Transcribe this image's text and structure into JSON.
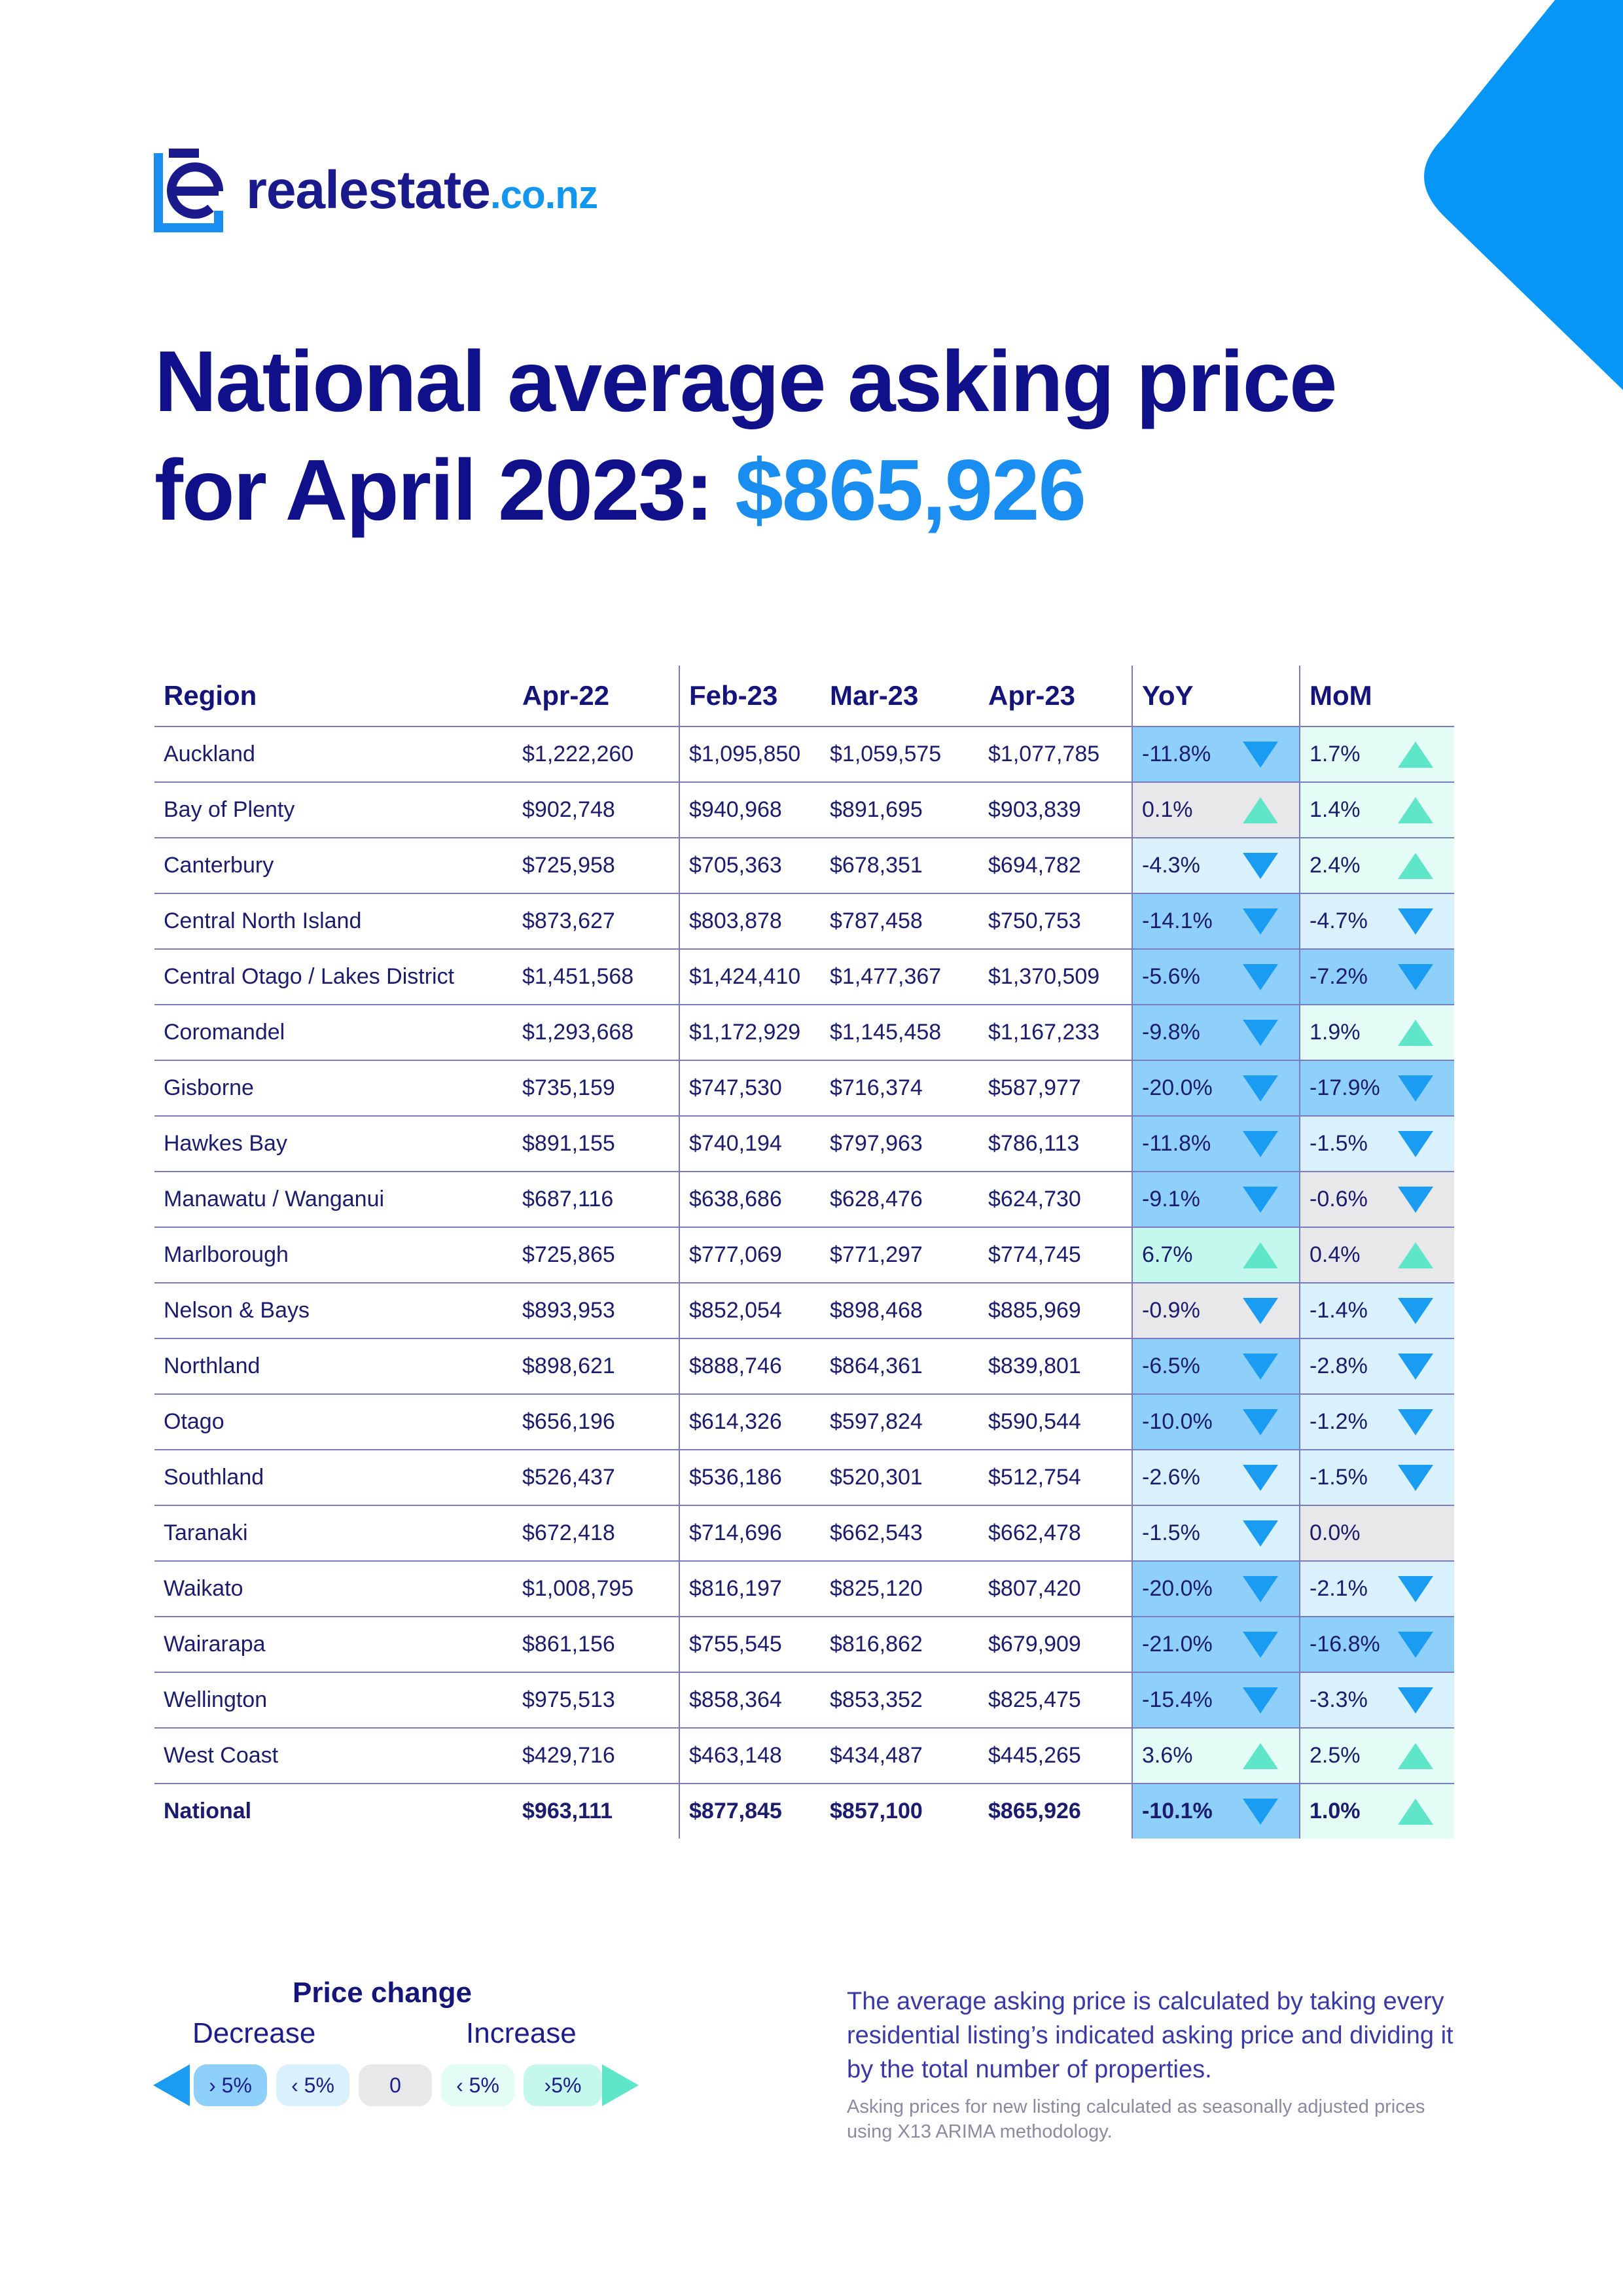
{
  "brand": {
    "name": "realestate",
    "tld": ".co.nz"
  },
  "headline": {
    "line1": "National average asking price",
    "line2": "for April 2023: ",
    "price": "$865,926"
  },
  "table": {
    "headers": [
      "Region",
      "Apr-22",
      "Feb-23",
      "Mar-23",
      "Apr-23",
      "YoY",
      "MoM"
    ],
    "rows": [
      {
        "region": "Auckland",
        "apr22": "$1,222,260",
        "feb23": "$1,095,850",
        "mar23": "$1,059,575",
        "apr23": "$1,077,785",
        "yoy": "-11.8%",
        "yoy_dir": "down",
        "yoy_band": "sdn",
        "mom": "1.7%",
        "mom_dir": "up",
        "mom_band": "up"
      },
      {
        "region": "Bay of Plenty",
        "apr22": "$902,748",
        "feb23": "$940,968",
        "mar23": "$891,695",
        "apr23": "$903,839",
        "yoy": "0.1%",
        "yoy_dir": "up",
        "yoy_band": "neu",
        "mom": "1.4%",
        "mom_dir": "up",
        "mom_band": "up"
      },
      {
        "region": "Canterbury",
        "apr22": "$725,958",
        "feb23": "$705,363",
        "mar23": "$678,351",
        "apr23": "$694,782",
        "yoy": "-4.3%",
        "yoy_dir": "down",
        "yoy_band": "dn",
        "mom": "2.4%",
        "mom_dir": "up",
        "mom_band": "up"
      },
      {
        "region": "Central North Island",
        "apr22": "$873,627",
        "feb23": "$803,878",
        "mar23": "$787,458",
        "apr23": "$750,753",
        "yoy": "-14.1%",
        "yoy_dir": "down",
        "yoy_band": "sdn",
        "mom": "-4.7%",
        "mom_dir": "down",
        "mom_band": "dn"
      },
      {
        "region": "Central Otago / Lakes District",
        "apr22": "$1,451,568",
        "feb23": "$1,424,410",
        "mar23": "$1,477,367",
        "apr23": "$1,370,509",
        "yoy": "-5.6%",
        "yoy_dir": "down",
        "yoy_band": "sdn",
        "mom": "-7.2%",
        "mom_dir": "down",
        "mom_band": "sdn"
      },
      {
        "region": "Coromandel",
        "apr22": "$1,293,668",
        "feb23": "$1,172,929",
        "mar23": "$1,145,458",
        "apr23": "$1,167,233",
        "yoy": "-9.8%",
        "yoy_dir": "down",
        "yoy_band": "sdn",
        "mom": "1.9%",
        "mom_dir": "up",
        "mom_band": "up"
      },
      {
        "region": "Gisborne",
        "apr22": "$735,159",
        "feb23": "$747,530",
        "mar23": "$716,374",
        "apr23": "$587,977",
        "yoy": "-20.0%",
        "yoy_dir": "down",
        "yoy_band": "sdn",
        "mom": "-17.9%",
        "mom_dir": "down",
        "mom_band": "sdn"
      },
      {
        "region": "Hawkes Bay",
        "apr22": "$891,155",
        "feb23": "$740,194",
        "mar23": "$797,963",
        "apr23": "$786,113",
        "yoy": "-11.8%",
        "yoy_dir": "down",
        "yoy_band": "sdn",
        "mom": "-1.5%",
        "mom_dir": "down",
        "mom_band": "dn"
      },
      {
        "region": "Manawatu / Wanganui",
        "apr22": "$687,116",
        "feb23": "$638,686",
        "mar23": "$628,476",
        "apr23": "$624,730",
        "yoy": "-9.1%",
        "yoy_dir": "down",
        "yoy_band": "sdn",
        "mom": "-0.6%",
        "mom_dir": "down",
        "mom_band": "neu"
      },
      {
        "region": "Marlborough",
        "apr22": "$725,865",
        "feb23": "$777,069",
        "mar23": "$771,297",
        "apr23": "$774,745",
        "yoy": "6.7%",
        "yoy_dir": "up",
        "yoy_band": "sup",
        "mom": "0.4%",
        "mom_dir": "up",
        "mom_band": "neu"
      },
      {
        "region": "Nelson & Bays",
        "apr22": "$893,953",
        "feb23": "$852,054",
        "mar23": "$898,468",
        "apr23": "$885,969",
        "yoy": "-0.9%",
        "yoy_dir": "down",
        "yoy_band": "neu",
        "mom": "-1.4%",
        "mom_dir": "down",
        "mom_band": "dn"
      },
      {
        "region": "Northland",
        "apr22": "$898,621",
        "feb23": "$888,746",
        "mar23": "$864,361",
        "apr23": "$839,801",
        "yoy": "-6.5%",
        "yoy_dir": "down",
        "yoy_band": "sdn",
        "mom": "-2.8%",
        "mom_dir": "down",
        "mom_band": "dn"
      },
      {
        "region": "Otago",
        "apr22": "$656,196",
        "feb23": "$614,326",
        "mar23": "$597,824",
        "apr23": "$590,544",
        "yoy": "-10.0%",
        "yoy_dir": "down",
        "yoy_band": "sdn",
        "mom": "-1.2%",
        "mom_dir": "down",
        "mom_band": "dn"
      },
      {
        "region": "Southland",
        "apr22": "$526,437",
        "feb23": "$536,186",
        "mar23": "$520,301",
        "apr23": "$512,754",
        "yoy": "-2.6%",
        "yoy_dir": "down",
        "yoy_band": "dn",
        "mom": "-1.5%",
        "mom_dir": "down",
        "mom_band": "dn"
      },
      {
        "region": "Taranaki",
        "apr22": "$672,418",
        "feb23": "$714,696",
        "mar23": "$662,543",
        "apr23": "$662,478",
        "yoy": "-1.5%",
        "yoy_dir": "down",
        "yoy_band": "dn",
        "mom": "0.0%",
        "mom_dir": "none",
        "mom_band": "neu"
      },
      {
        "region": "Waikato",
        "apr22": "$1,008,795",
        "feb23": "$816,197",
        "mar23": "$825,120",
        "apr23": "$807,420",
        "yoy": "-20.0%",
        "yoy_dir": "down",
        "yoy_band": "sdn",
        "mom": "-2.1%",
        "mom_dir": "down",
        "mom_band": "dn"
      },
      {
        "region": "Wairarapa",
        "apr22": "$861,156",
        "feb23": "$755,545",
        "mar23": "$816,862",
        "apr23": "$679,909",
        "yoy": "-21.0%",
        "yoy_dir": "down",
        "yoy_band": "sdn",
        "mom": "-16.8%",
        "mom_dir": "down",
        "mom_band": "sdn"
      },
      {
        "region": "Wellington",
        "apr22": "$975,513",
        "feb23": "$858,364",
        "mar23": "$853,352",
        "apr23": "$825,475",
        "yoy": "-15.4%",
        "yoy_dir": "down",
        "yoy_band": "sdn",
        "mom": "-3.3%",
        "mom_dir": "down",
        "mom_band": "dn"
      },
      {
        "region": "West Coast",
        "apr22": "$429,716",
        "feb23": "$463,148",
        "mar23": "$434,487",
        "apr23": "$445,265",
        "yoy": "3.6%",
        "yoy_dir": "up",
        "yoy_band": "up",
        "mom": "2.5%",
        "mom_dir": "up",
        "mom_band": "up"
      },
      {
        "region": "National",
        "apr22": "$963,111",
        "feb23": "$877,845",
        "mar23": "$857,100",
        "apr23": "$865,926",
        "yoy": "-10.1%",
        "yoy_dir": "down",
        "yoy_band": "sdn",
        "mom": "1.0%",
        "mom_dir": "up",
        "mom_band": "up",
        "total": true
      }
    ]
  },
  "legend": {
    "title": "Price change",
    "decrease": "Decrease",
    "increase": "Increase",
    "pills": [
      "› 5%",
      "‹ 5%",
      "0",
      "‹ 5%",
      "›5%"
    ]
  },
  "note": "The average asking price is calculated by taking every residential listing’s indicated asking price and dividing it by the total number of properties.",
  "small_note": "Asking prices for new listing calculated as seasonally adjusted prices using X13 ARIMA methodology.",
  "colors": {
    "navy": "#10108a",
    "accent_blue": "#1a8ef0",
    "arrow_down": "#1a9cf2",
    "arrow_up": "#5fe6c9",
    "band_strong_down": "#8fd0fb",
    "band_down": "#d9f0fd",
    "band_neutral": "#e8e8ea",
    "band_up": "#e4fcf6",
    "band_strong_up": "#c4f8ec"
  },
  "icons": {
    "down": "triangle-down-icon",
    "up": "triangle-up-icon",
    "logo": "re-logo-icon"
  }
}
